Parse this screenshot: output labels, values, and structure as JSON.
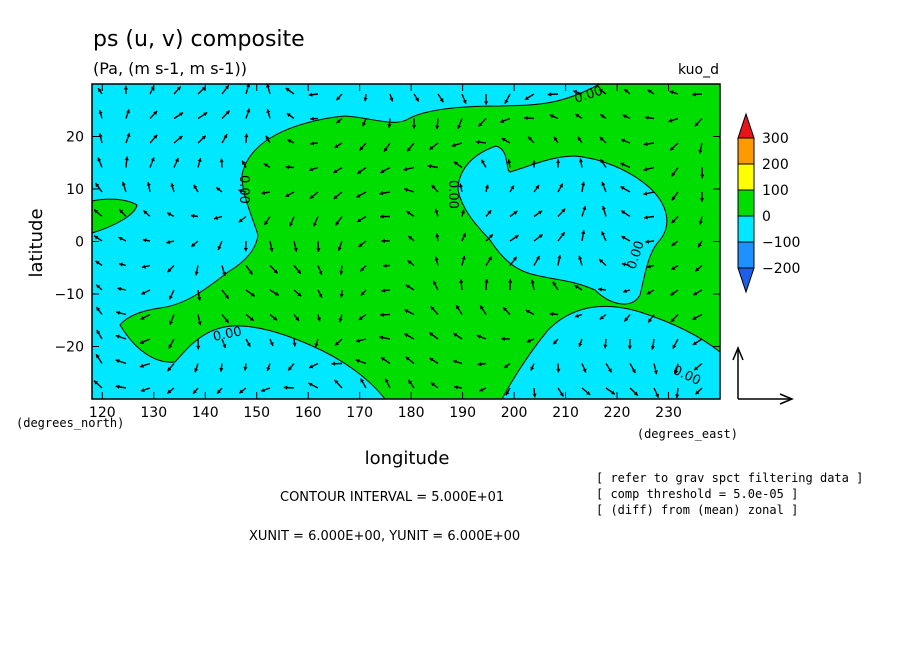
{
  "chart_data": {
    "type": "contour",
    "title": "ps (u, v) composite",
    "subtitle": "(Pa, (m s-1, m s-1))",
    "run_label": "kuo_d",
    "xlabel": "longitude",
    "ylabel": "latitude",
    "x_units": "(degrees_east)",
    "y_units": "(degrees_north)",
    "xlim": [
      118,
      240
    ],
    "ylim": [
      -30,
      30
    ],
    "x_ticks": [
      120,
      130,
      140,
      150,
      160,
      170,
      180,
      190,
      200,
      210,
      220,
      230
    ],
    "x_tick_labels": [
      "120",
      "130",
      "140",
      "150",
      "160",
      "170",
      "180",
      "190",
      "200",
      "210",
      "220",
      "230"
    ],
    "y_ticks": [
      20,
      10,
      0,
      -10,
      -20
    ],
    "y_tick_labels": [
      "20",
      "10",
      "0",
      "−10",
      "−20"
    ],
    "contour_label": "0.00",
    "colorbar": {
      "labels": [
        "300",
        "200",
        "100",
        "0",
        "−100",
        "−200"
      ],
      "colors": [
        "#e8141c",
        "#ff9900",
        "#ffff00",
        "#00dd00",
        "#00e8ff",
        "#1e90ff",
        "#1c5fe8"
      ]
    },
    "fill_colors": {
      "positive": "#00dd00",
      "negative": "#00e8ff"
    },
    "contour_interval_text": "CONTOUR INTERVAL = 5.000E+01",
    "unit_text": "XUNIT = 6.000E+00, YUNIT = 6.000E+00",
    "notes": [
      "[ refer to grav spct filtering data ]",
      "[ comp threshold = 5.0e-05 ]",
      "[ (diff) from (mean) zonal ]"
    ]
  }
}
